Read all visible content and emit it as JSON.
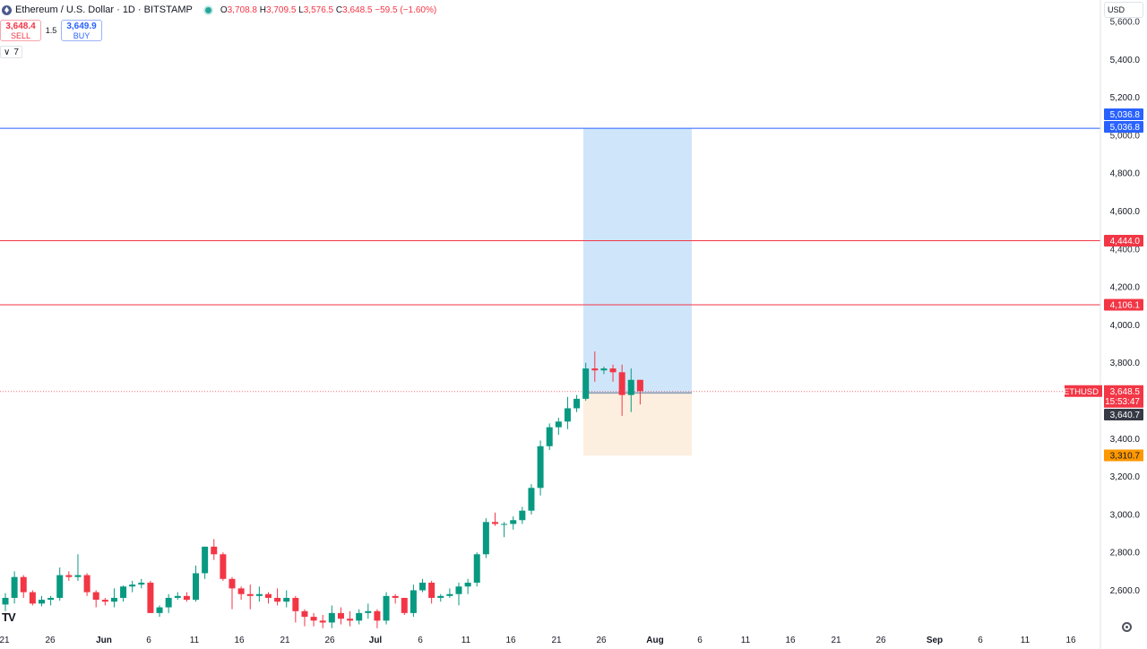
{
  "header": {
    "symbol_title": "Ethereum / U.S. Dollar · 1D · BITSTAMP",
    "ohlc": {
      "o_label": "O",
      "o": "3,708.8",
      "h_label": "H",
      "h": "3,709.5",
      "l_label": "L",
      "l": "3,576.5",
      "c_label": "C",
      "c": "3,648.5",
      "change": "−59.5 (−1.60%)"
    },
    "currency": "USD",
    "icon": "ethereum-logo-icon"
  },
  "trading": {
    "sell_price": "3,648.4",
    "sell_label": "SELL",
    "quantity": "1.5",
    "buy_price": "3,649.9",
    "buy_label": "BUY"
  },
  "indicator_toggle": {
    "icon": "chevron-down-icon",
    "count": "7"
  },
  "price_scale": {
    "ticks": [
      "5,400.0",
      "5,200.0",
      "4,800.0",
      "4,600.0",
      "4,200.0",
      "4,000.0",
      "3,800.0",
      "3,400.0",
      "3,200.0",
      "3,000.0",
      "2,800.0",
      "2,600.0"
    ],
    "partial_ticks": [
      "5,600.0",
      "5,000.0",
      "4,400.0"
    ],
    "labels": {
      "target_top": "5,036.8",
      "target_bottom": "5,036.8",
      "line_upper": "4,444.0",
      "line_lower": "4,106.1",
      "symbol_tag": "ETHUSD",
      "last_price": "3,648.5",
      "countdown": "15:53:47",
      "entry": "3,640.7",
      "stop": "3,310.7"
    }
  },
  "time_scale": {
    "labels": [
      "21",
      "26",
      "Jun",
      "6",
      "11",
      "16",
      "21",
      "26",
      "Jul",
      "6",
      "11",
      "16",
      "21",
      "26",
      "Aug",
      "6",
      "11",
      "16",
      "21",
      "26",
      "Sep",
      "6",
      "11",
      "16"
    ]
  },
  "colors": {
    "up": "#089981",
    "down": "#f23645",
    "blue_line": "#2962ff",
    "red_line": "#f23645",
    "profit_zone": "#cfe6fa",
    "loss_zone": "#fdefe0",
    "stop_label": "#ff9800",
    "entry_label": "#363a45"
  },
  "footer": {
    "logo_text": "TV",
    "settings_icon": "gear-icon"
  },
  "chart_data": {
    "type": "candlestick",
    "title": "Ethereum / U.S. Dollar · 1D · BITSTAMP",
    "x_unit": "trading day",
    "ylim": [
      2450,
      5700
    ],
    "y_scale": "linear",
    "grid": false,
    "horizontal_lines": [
      5036.8,
      4444.0,
      4106.1
    ],
    "position": {
      "type": "long",
      "entry": 3640.7,
      "target": 5036.8,
      "stop": 3310.7
    },
    "last_price": 3648.5,
    "candles": [
      [
        2525,
        2585,
        2490,
        2560
      ],
      [
        2560,
        2700,
        2530,
        2670
      ],
      [
        2670,
        2680,
        2560,
        2590
      ],
      [
        2590,
        2600,
        2520,
        2530
      ],
      [
        2530,
        2570,
        2515,
        2550
      ],
      [
        2550,
        2570,
        2520,
        2560
      ],
      [
        2560,
        2720,
        2545,
        2680
      ],
      [
        2680,
        2700,
        2650,
        2670
      ],
      [
        2670,
        2790,
        2650,
        2680
      ],
      [
        2680,
        2690,
        2570,
        2590
      ],
      [
        2590,
        2600,
        2510,
        2550
      ],
      [
        2550,
        2560,
        2520,
        2540
      ],
      [
        2540,
        2610,
        2510,
        2560
      ],
      [
        2560,
        2625,
        2540,
        2620
      ],
      [
        2620,
        2650,
        2590,
        2630
      ],
      [
        2630,
        2660,
        2610,
        2640
      ],
      [
        2640,
        2650,
        2480,
        2480
      ],
      [
        2480,
        2520,
        2460,
        2510
      ],
      [
        2510,
        2580,
        2480,
        2560
      ],
      [
        2560,
        2590,
        2550,
        2570
      ],
      [
        2570,
        2590,
        2540,
        2550
      ],
      [
        2550,
        2730,
        2540,
        2690
      ],
      [
        2690,
        2830,
        2660,
        2830
      ],
      [
        2830,
        2870,
        2760,
        2790
      ],
      [
        2790,
        2800,
        2650,
        2660
      ],
      [
        2660,
        2670,
        2500,
        2610
      ],
      [
        2610,
        2620,
        2550,
        2580
      ],
      [
        2580,
        2630,
        2500,
        2570
      ],
      [
        2570,
        2620,
        2540,
        2580
      ],
      [
        2580,
        2590,
        2530,
        2560
      ],
      [
        2560,
        2610,
        2520,
        2540
      ],
      [
        2540,
        2600,
        2510,
        2560
      ],
      [
        2560,
        2570,
        2430,
        2490
      ],
      [
        2490,
        2500,
        2410,
        2460
      ],
      [
        2460,
        2480,
        2410,
        2440
      ],
      [
        2440,
        2470,
        2400,
        2430
      ],
      [
        2430,
        2520,
        2400,
        2480
      ],
      [
        2480,
        2510,
        2420,
        2450
      ],
      [
        2450,
        2490,
        2410,
        2440
      ],
      [
        2440,
        2500,
        2420,
        2480
      ],
      [
        2480,
        2530,
        2450,
        2490
      ],
      [
        2490,
        2500,
        2400,
        2440
      ],
      [
        2440,
        2590,
        2420,
        2570
      ],
      [
        2570,
        2580,
        2530,
        2560
      ],
      [
        2560,
        2560,
        2470,
        2480
      ],
      [
        2480,
        2630,
        2460,
        2600
      ],
      [
        2600,
        2660,
        2590,
        2640
      ],
      [
        2640,
        2650,
        2530,
        2560
      ],
      [
        2560,
        2580,
        2540,
        2570
      ],
      [
        2570,
        2610,
        2560,
        2580
      ],
      [
        2580,
        2640,
        2520,
        2620
      ],
      [
        2620,
        2660,
        2580,
        2640
      ],
      [
        2640,
        2800,
        2620,
        2790
      ],
      [
        2790,
        2980,
        2770,
        2960
      ],
      [
        2960,
        3010,
        2940,
        2950
      ],
      [
        2950,
        2960,
        2880,
        2950
      ],
      [
        2950,
        2990,
        2920,
        2970
      ],
      [
        2970,
        3040,
        2950,
        3020
      ],
      [
        3020,
        3160,
        3000,
        3140
      ],
      [
        3140,
        3390,
        3100,
        3360
      ],
      [
        3360,
        3480,
        3340,
        3460
      ],
      [
        3460,
        3510,
        3420,
        3490
      ],
      [
        3490,
        3620,
        3450,
        3560
      ],
      [
        3560,
        3630,
        3540,
        3610
      ],
      [
        3610,
        3800,
        3600,
        3770
      ],
      [
        3770,
        3860,
        3700,
        3760
      ],
      [
        3760,
        3780,
        3740,
        3770
      ],
      [
        3770,
        3790,
        3700,
        3750
      ],
      [
        3750,
        3790,
        3520,
        3630
      ],
      [
        3630,
        3770,
        3540,
        3710
      ],
      [
        3710,
        3710,
        3580,
        3650
      ]
    ]
  }
}
